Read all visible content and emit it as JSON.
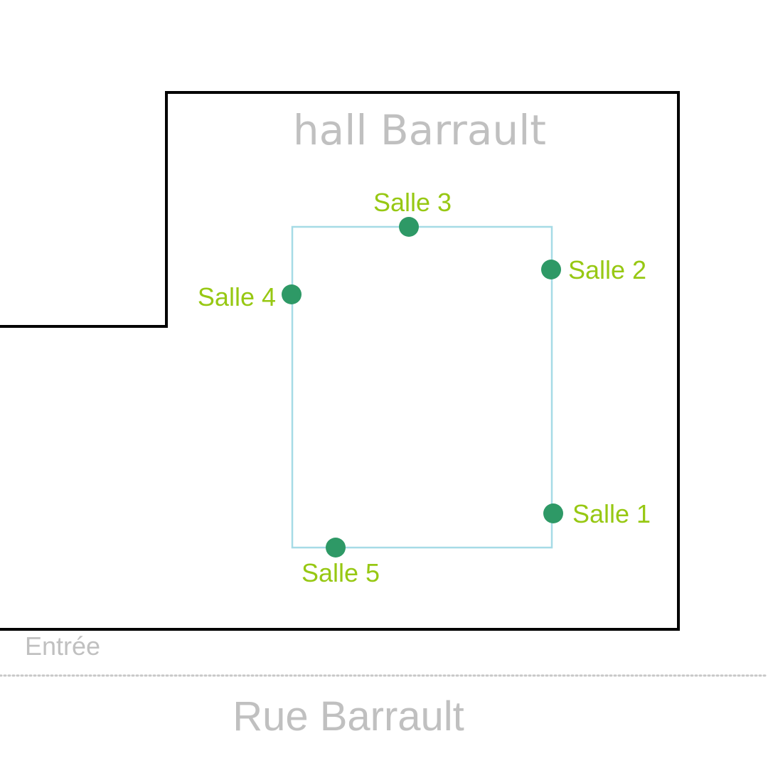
{
  "hall": {
    "title": "hall Barrault"
  },
  "entrance": {
    "label": "Entrée"
  },
  "street": {
    "name": "Rue Barrault"
  },
  "rooms": [
    {
      "label": "Salle 1"
    },
    {
      "label": "Salle 2"
    },
    {
      "label": "Salle 3"
    },
    {
      "label": "Salle 4"
    },
    {
      "label": "Salle 5"
    }
  ],
  "colors": {
    "wall": "#000000",
    "circuit": "#a6dbe6",
    "room_dot": "#2e9966",
    "room_label": "#97c813",
    "muted_text": "#c0c0c0",
    "street_line": "#c8c8c8"
  }
}
